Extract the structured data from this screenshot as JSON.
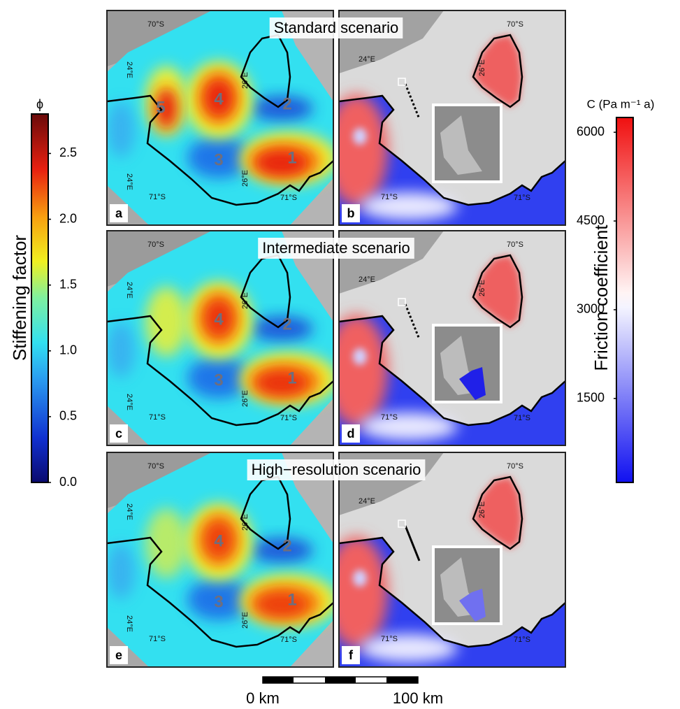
{
  "figure": {
    "rows": [
      {
        "title": "Standard scenario",
        "panels": [
          {
            "letter": "a",
            "regions": [
              "5",
              "4",
              "2",
              "3",
              "1"
            ]
          },
          {
            "letter": "b"
          }
        ]
      },
      {
        "title": "Intermediate scenario",
        "panels": [
          {
            "letter": "c",
            "regions": [
              "4",
              "2",
              "3",
              "1"
            ]
          },
          {
            "letter": "d"
          }
        ]
      },
      {
        "title": "High−resolution scenario",
        "panels": [
          {
            "letter": "e",
            "regions": [
              "4",
              "2",
              "3",
              "1"
            ]
          },
          {
            "letter": "f"
          }
        ]
      }
    ],
    "map_labels": {
      "lat_north": "70°S",
      "lat_south": "71°S",
      "lon_west": "24°E",
      "lon_east": "26°E"
    },
    "colorbars": [
      {
        "symbol": "ϕ",
        "title": "Stiffening factor",
        "range": [
          0,
          2.8
        ],
        "ticks": [
          {
            "value": 0,
            "label": "0.0"
          },
          0.5,
          {
            "value": 1,
            "label": "1.0"
          },
          1.5,
          {
            "value": 2,
            "label": "2.0"
          },
          2.5
        ]
      },
      {
        "symbol": "C (Pa m⁻¹ a)",
        "title": "Friction coefficient",
        "range": [
          80,
          6250
        ],
        "ticks": [
          1500,
          3000,
          4500,
          6000
        ]
      }
    ],
    "scale_bar": {
      "start": "0 km",
      "end": "100 km"
    }
  }
}
